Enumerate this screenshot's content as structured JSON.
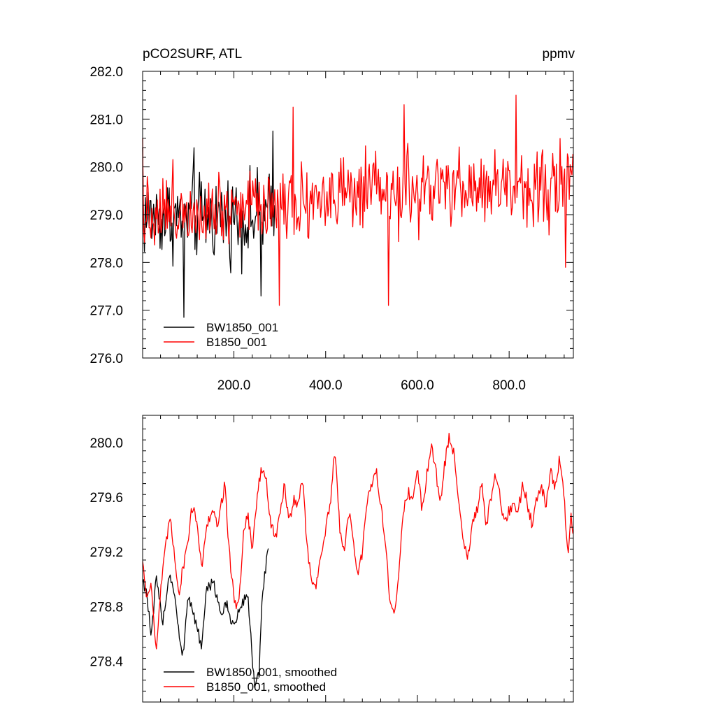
{
  "chart_data": [
    {
      "type": "line",
      "title_left": "pCO2SURF, ATL",
      "title_right": "ppmv",
      "xlim": [
        1,
        940
      ],
      "ylim": [
        276.0,
        282.0
      ],
      "x_ticks": [
        {
          "value": 200,
          "label": "200.0"
        },
        {
          "value": 400,
          "label": "400.0"
        },
        {
          "value": 600,
          "label": "600.0"
        },
        {
          "value": 800,
          "label": "800.0"
        }
      ],
      "y_ticks": [
        {
          "value": 276.0,
          "label": "276.0"
        },
        {
          "value": 277.0,
          "label": "277.0"
        },
        {
          "value": 278.0,
          "label": "278.0"
        },
        {
          "value": 279.0,
          "label": "279.0"
        },
        {
          "value": 280.0,
          "label": "280.0"
        },
        {
          "value": 281.0,
          "label": "281.0"
        },
        {
          "value": 282.0,
          "label": "282.0"
        }
      ],
      "legend_position": "lower-left",
      "series": [
        {
          "name": "BW1850_001",
          "color": "#000000",
          "x_range": [
            1,
            290
          ],
          "mean": 278.95,
          "amplitude": 0.6,
          "anchors": [
            [
              1,
              280.4
            ],
            [
              91,
              276.85
            ],
            [
              113,
              280.4
            ],
            [
              260,
              277.3
            ],
            [
              285,
              280.75
            ]
          ]
        },
        {
          "name": "B1850_001",
          "color": "#ff0000",
          "x_range": [
            1,
            940
          ],
          "mean": 279.4,
          "amplitude": 0.55,
          "anchors": [
            [
              1,
              280.6
            ],
            [
              300,
              277.1
            ],
            [
              330,
              281.25
            ],
            [
              537,
              277.1
            ],
            [
              572,
              281.3
            ],
            [
              816,
              281.5
            ],
            [
              923,
              277.9
            ]
          ]
        }
      ]
    },
    {
      "type": "line",
      "xlim": [
        1,
        940
      ],
      "ylim": [
        278.1,
        280.2
      ],
      "y_ticks": [
        {
          "value": 278.4,
          "label": "278.4"
        },
        {
          "value": 278.8,
          "label": "278.8"
        },
        {
          "value": 279.2,
          "label": "279.2"
        },
        {
          "value": 279.6,
          "label": "279.6"
        },
        {
          "value": 280.0,
          "label": "280.0"
        }
      ],
      "legend_position": "lower-left",
      "series": [
        {
          "name": "BW1850_001, smoothed",
          "color": "#000000",
          "x_range": [
            1,
            275
          ],
          "points": [
            [
              1,
              279.0
            ],
            [
              10,
              278.9
            ],
            [
              20,
              278.55
            ],
            [
              30,
              279.0
            ],
            [
              45,
              278.7
            ],
            [
              60,
              279.05
            ],
            [
              70,
              278.9
            ],
            [
              80,
              278.6
            ],
            [
              88,
              278.4
            ],
            [
              100,
              278.9
            ],
            [
              115,
              278.7
            ],
            [
              130,
              278.5
            ],
            [
              140,
              278.9
            ],
            [
              155,
              279.0
            ],
            [
              170,
              278.75
            ],
            [
              185,
              278.8
            ],
            [
              200,
              278.65
            ],
            [
              215,
              278.8
            ],
            [
              230,
              278.9
            ],
            [
              245,
              278.2
            ],
            [
              255,
              278.3
            ],
            [
              262,
              278.9
            ],
            [
              270,
              279.1
            ],
            [
              275,
              279.2
            ]
          ]
        },
        {
          "name": "B1850_001, smoothed",
          "color": "#ff0000",
          "x_range": [
            1,
            940
          ],
          "points": [
            [
              1,
              279.15
            ],
            [
              10,
              278.85
            ],
            [
              20,
              279.0
            ],
            [
              30,
              278.45
            ],
            [
              40,
              278.9
            ],
            [
              50,
              279.2
            ],
            [
              60,
              279.45
            ],
            [
              70,
              279.2
            ],
            [
              80,
              278.9
            ],
            [
              90,
              279.1
            ],
            [
              100,
              279.3
            ],
            [
              110,
              279.55
            ],
            [
              120,
              279.4
            ],
            [
              130,
              279.1
            ],
            [
              140,
              279.35
            ],
            [
              150,
              279.5
            ],
            [
              165,
              279.4
            ],
            [
              180,
              279.7
            ],
            [
              190,
              279.2
            ],
            [
              200,
              278.85
            ],
            [
              210,
              278.8
            ],
            [
              220,
              279.3
            ],
            [
              230,
              279.5
            ],
            [
              240,
              279.2
            ],
            [
              250,
              279.6
            ],
            [
              260,
              279.8
            ],
            [
              270,
              279.75
            ],
            [
              280,
              279.4
            ],
            [
              290,
              279.3
            ],
            [
              300,
              279.45
            ],
            [
              310,
              279.7
            ],
            [
              320,
              279.4
            ],
            [
              330,
              279.6
            ],
            [
              340,
              279.55
            ],
            [
              350,
              279.75
            ],
            [
              360,
              279.2
            ],
            [
              370,
              279.0
            ],
            [
              380,
              278.95
            ],
            [
              390,
              279.2
            ],
            [
              400,
              279.35
            ],
            [
              410,
              279.55
            ],
            [
              420,
              279.95
            ],
            [
              430,
              279.4
            ],
            [
              440,
              279.2
            ],
            [
              450,
              279.5
            ],
            [
              460,
              279.3
            ],
            [
              470,
              279.0
            ],
            [
              480,
              279.2
            ],
            [
              490,
              279.55
            ],
            [
              500,
              279.7
            ],
            [
              510,
              279.8
            ],
            [
              520,
              279.55
            ],
            [
              530,
              279.3
            ],
            [
              540,
              278.8
            ],
            [
              550,
              278.75
            ],
            [
              560,
              279.1
            ],
            [
              570,
              279.5
            ],
            [
              580,
              279.65
            ],
            [
              590,
              279.55
            ],
            [
              600,
              279.85
            ],
            [
              610,
              279.5
            ],
            [
              620,
              279.75
            ],
            [
              630,
              280.0
            ],
            [
              640,
              279.8
            ],
            [
              650,
              279.55
            ],
            [
              660,
              279.85
            ],
            [
              670,
              280.05
            ],
            [
              680,
              279.9
            ],
            [
              690,
              279.6
            ],
            [
              700,
              279.3
            ],
            [
              710,
              279.15
            ],
            [
              720,
              279.4
            ],
            [
              730,
              279.5
            ],
            [
              740,
              279.7
            ],
            [
              750,
              279.35
            ],
            [
              760,
              279.6
            ],
            [
              770,
              279.75
            ],
            [
              780,
              279.6
            ],
            [
              790,
              279.4
            ],
            [
              800,
              279.5
            ],
            [
              810,
              279.55
            ],
            [
              820,
              279.5
            ],
            [
              830,
              279.7
            ],
            [
              840,
              279.55
            ],
            [
              850,
              279.4
            ],
            [
              860,
              279.6
            ],
            [
              870,
              279.7
            ],
            [
              880,
              279.55
            ],
            [
              890,
              279.8
            ],
            [
              900,
              279.65
            ],
            [
              910,
              279.9
            ],
            [
              920,
              279.6
            ],
            [
              925,
              279.3
            ],
            [
              930,
              279.2
            ],
            [
              935,
              279.45
            ],
            [
              940,
              279.35
            ]
          ]
        }
      ]
    }
  ]
}
